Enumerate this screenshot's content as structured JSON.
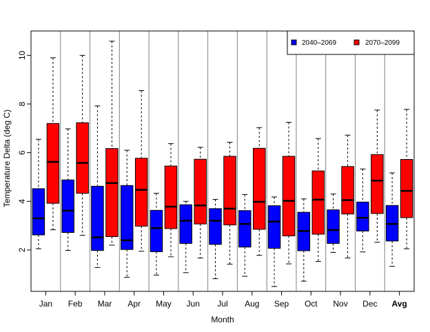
{
  "chart_data": {
    "type": "boxplot",
    "xlabel": "Month",
    "ylabel": "Temperature Delta (deg C)",
    "ylim": [
      0.3,
      11.0
    ],
    "yticks": [
      2,
      4,
      6,
      8,
      10
    ],
    "categories": [
      "Jan",
      "Feb",
      "Mar",
      "Apr",
      "May",
      "Jun",
      "Jul",
      "Aug",
      "Sep",
      "Oct",
      "Nov",
      "Dec",
      "Avg"
    ],
    "bold_categories": [
      "Avg"
    ],
    "legend_position": "top-right",
    "series": [
      {
        "name": "2040–2069",
        "color": "#0000ff",
        "boxes": [
          {
            "min": 2.05,
            "q1": 2.62,
            "median": 3.3,
            "q3": 4.52,
            "max": 6.55
          },
          {
            "min": 1.98,
            "q1": 2.72,
            "median": 3.62,
            "q3": 4.88,
            "max": 6.98
          },
          {
            "min": 1.28,
            "q1": 1.98,
            "median": 2.52,
            "q3": 4.62,
            "max": 7.92
          },
          {
            "min": 0.88,
            "q1": 2.02,
            "median": 2.4,
            "q3": 4.65,
            "max": 6.1
          },
          {
            "min": 0.97,
            "q1": 1.93,
            "median": 2.9,
            "q3": 3.63,
            "max": 4.33
          },
          {
            "min": 1.07,
            "q1": 2.27,
            "median": 3.2,
            "q3": 3.86,
            "max": 4.0
          },
          {
            "min": 0.82,
            "q1": 2.23,
            "median": 3.2,
            "q3": 3.7,
            "max": 4.08
          },
          {
            "min": 0.92,
            "q1": 2.12,
            "median": 3.07,
            "q3": 3.62,
            "max": 4.28
          },
          {
            "min": 0.5,
            "q1": 2.07,
            "median": 3.17,
            "q3": 3.82,
            "max": 4.18
          },
          {
            "min": 0.72,
            "q1": 1.97,
            "median": 2.78,
            "q3": 3.55,
            "max": 4.1
          },
          {
            "min": 1.9,
            "q1": 2.27,
            "median": 2.82,
            "q3": 3.65,
            "max": 4.3
          },
          {
            "min": 1.92,
            "q1": 2.78,
            "median": 3.32,
            "q3": 3.97,
            "max": 5.33
          },
          {
            "min": 1.33,
            "q1": 2.37,
            "median": 3.07,
            "q3": 3.83,
            "max": 5.17
          }
        ]
      },
      {
        "name": "2070–2099",
        "color": "#ff0000",
        "boxes": [
          {
            "min": 2.83,
            "q1": 3.92,
            "median": 5.62,
            "q3": 7.2,
            "max": 9.9
          },
          {
            "min": 2.6,
            "q1": 4.33,
            "median": 5.58,
            "q3": 7.23,
            "max": 10.0
          },
          {
            "min": 2.2,
            "q1": 2.55,
            "median": 4.75,
            "q3": 6.17,
            "max": 10.58
          },
          {
            "min": 1.95,
            "q1": 2.98,
            "median": 4.47,
            "q3": 5.77,
            "max": 8.55
          },
          {
            "min": 1.72,
            "q1": 2.88,
            "median": 3.78,
            "q3": 5.45,
            "max": 6.37
          },
          {
            "min": 1.67,
            "q1": 3.07,
            "median": 3.83,
            "q3": 5.73,
            "max": 6.22
          },
          {
            "min": 1.42,
            "q1": 3.03,
            "median": 3.7,
            "q3": 5.85,
            "max": 6.43
          },
          {
            "min": 1.78,
            "q1": 2.85,
            "median": 3.98,
            "q3": 6.18,
            "max": 7.03
          },
          {
            "min": 1.43,
            "q1": 2.58,
            "median": 4.02,
            "q3": 5.85,
            "max": 7.25
          },
          {
            "min": 1.53,
            "q1": 2.65,
            "median": 4.07,
            "q3": 5.25,
            "max": 6.58
          },
          {
            "min": 1.67,
            "q1": 3.48,
            "median": 4.05,
            "q3": 5.43,
            "max": 6.72
          },
          {
            "min": 2.32,
            "q1": 3.5,
            "median": 4.85,
            "q3": 5.92,
            "max": 7.75
          },
          {
            "min": 2.05,
            "q1": 3.33,
            "median": 4.43,
            "q3": 5.72,
            "max": 7.78
          }
        ]
      }
    ]
  }
}
